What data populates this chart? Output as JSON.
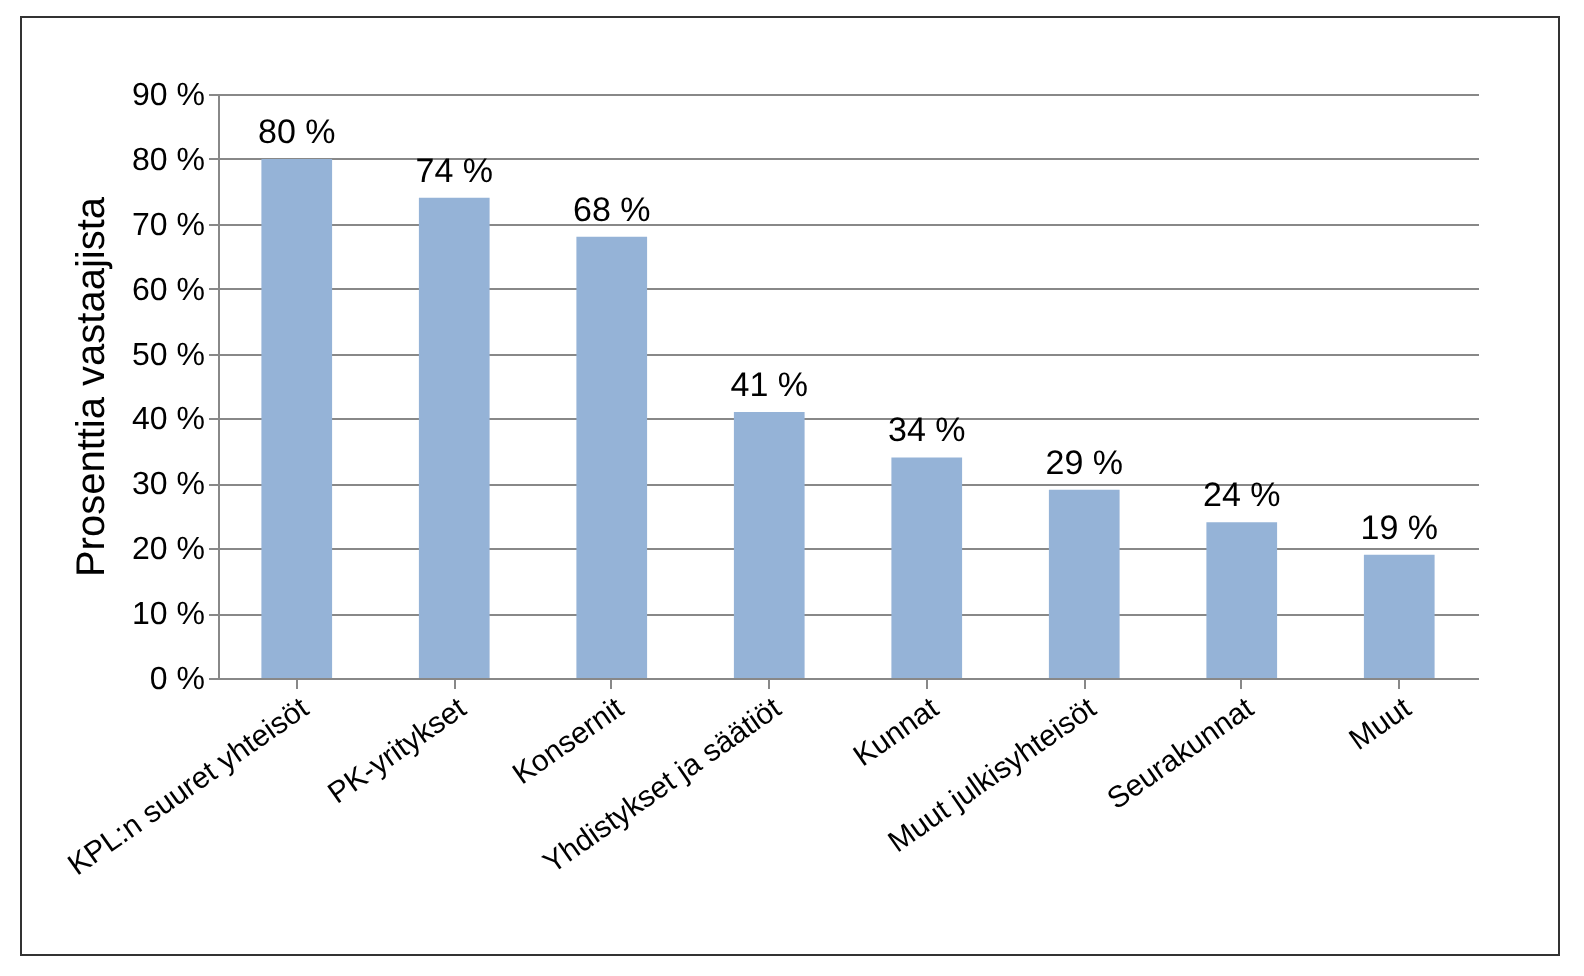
{
  "chart_data": {
    "type": "bar",
    "ylabel": "Prosenttia vastaajista",
    "categories": [
      "KPL:n suuret yhteisöt",
      "PK-yritykset",
      "Konsernit",
      "Yhdistykset ja säätiöt",
      "Kunnat",
      "Muut julkisyhteisöt",
      "Seurakunnat",
      "Muut"
    ],
    "values": [
      80,
      74,
      68,
      41,
      34,
      29,
      24,
      19
    ],
    "value_labels": [
      "80 %",
      "74 %",
      "68 %",
      "41 %",
      "34 %",
      "29 %",
      "24 %",
      "19 %"
    ],
    "color": "#95b3d7",
    "ylim": [
      0,
      90
    ],
    "yticks": [
      {
        "value": 0,
        "label": "0 %"
      },
      {
        "value": 10,
        "label": "10 %"
      },
      {
        "value": 20,
        "label": "20 %"
      },
      {
        "value": 30,
        "label": "30 %"
      },
      {
        "value": 40,
        "label": "40 %"
      },
      {
        "value": 50,
        "label": "50 %"
      },
      {
        "value": 60,
        "label": "60 %"
      },
      {
        "value": 70,
        "label": "70 %"
      },
      {
        "value": 80,
        "label": "80 %"
      },
      {
        "value": 90,
        "label": "90 %"
      }
    ],
    "grid": "y"
  }
}
